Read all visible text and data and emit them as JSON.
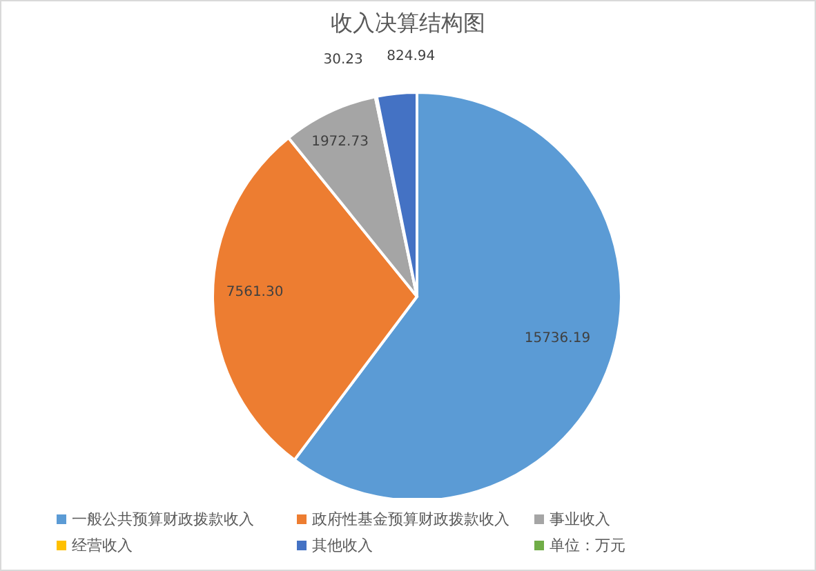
{
  "chart_data": {
    "type": "pie",
    "title": "收入决算结构图",
    "categories": [
      "一般公共预算财政拨款收入",
      "政府性基金预算财政拨款收入",
      "事业收入",
      "经营收入",
      "其他收入",
      "单位：万元"
    ],
    "values": [
      15736.19,
      7561.3,
      1972.73,
      30.23,
      824.94,
      0
    ],
    "value_labels": [
      "15736.19",
      "7561.30",
      "1972.73",
      "30.23",
      "824.94",
      null
    ],
    "colors": [
      "#5b9bd5",
      "#ed7d31",
      "#a5a5a5",
      "#ffc000",
      "#4472c4",
      "#70ad47"
    ],
    "legend": "bottom"
  }
}
